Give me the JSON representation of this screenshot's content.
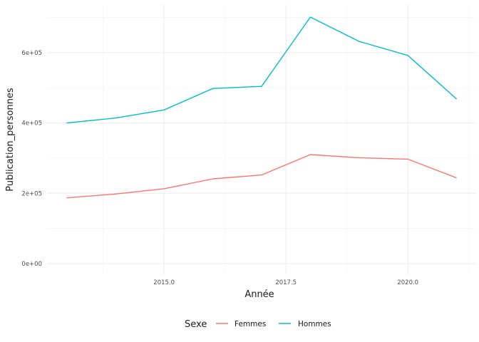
{
  "chart_data": {
    "type": "line",
    "xlabel": "Année",
    "ylabel": "Publication_personnes",
    "x": [
      2013,
      2014,
      2015,
      2016,
      2017,
      2018,
      2019,
      2020,
      2021
    ],
    "series": [
      {
        "name": "Femmes",
        "color": "#F8766D",
        "values": [
          187000,
          198000,
          213000,
          241000,
          252000,
          310000,
          301000,
          297000,
          244000
        ]
      },
      {
        "name": "Hommes",
        "color": "#00BFC4",
        "values": [
          400000,
          414000,
          437000,
          498000,
          504000,
          701000,
          632000,
          592000,
          468000
        ]
      }
    ],
    "xlim": [
      2012.6,
      2021.4
    ],
    "ylim": [
      0,
      701000
    ],
    "xticks": [
      2015.0,
      2017.5,
      2020.0
    ],
    "xtick_labels": [
      "2015.0",
      "2017.5",
      "2020.0"
    ],
    "yticks": [
      0,
      200000,
      400000,
      600000
    ],
    "ytick_labels": [
      "0e+00",
      "2e+05",
      "4e+05",
      "6e+05"
    ],
    "grid": true,
    "legend": {
      "title": "Sexe",
      "position": "bottom"
    }
  }
}
